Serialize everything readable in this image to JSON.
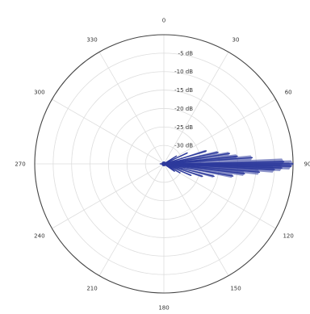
{
  "chart_data": {
    "type": "polar",
    "radial_unit": "dB",
    "radial_range": [
      -35,
      0
    ],
    "radial_step": 5,
    "angle_ticks": [
      {
        "angle": 0,
        "label": "0"
      },
      {
        "angle": 30,
        "label": "30"
      },
      {
        "angle": 60,
        "label": "60"
      },
      {
        "angle": 90,
        "label": "90"
      },
      {
        "angle": 120,
        "label": "120"
      },
      {
        "angle": 150,
        "label": "150"
      },
      {
        "angle": 180,
        "label": "180"
      },
      {
        "angle": 210,
        "label": "210"
      },
      {
        "angle": 240,
        "label": "240"
      },
      {
        "angle": 270,
        "label": "270"
      },
      {
        "angle": 300,
        "label": "300"
      },
      {
        "angle": 330,
        "label": "330"
      }
    ],
    "radial_tick_labels": [
      "-5 dB",
      "-10 dB",
      "-15 dB",
      "-20 dB",
      "-25 dB",
      "-30 dB"
    ],
    "grid": true,
    "series_color": "#2e3a9c",
    "beams": [
      {
        "angle": 90,
        "level": 0
      },
      {
        "angle": 91,
        "level": -0.5
      },
      {
        "angle": 89,
        "level": -2.5
      },
      {
        "angle": 92,
        "level": -3
      },
      {
        "angle": 93,
        "level": -5
      },
      {
        "angle": 95,
        "level": -9
      },
      {
        "angle": 97,
        "level": -13
      },
      {
        "angle": 86,
        "level": -11
      },
      {
        "angle": 84,
        "level": -15
      },
      {
        "angle": 81,
        "level": -17
      },
      {
        "angle": 78,
        "level": -20
      },
      {
        "angle": 73,
        "level": -23
      },
      {
        "angle": 100,
        "level": -16
      },
      {
        "angle": 104,
        "level": -21
      },
      {
        "angle": 108,
        "level": -24
      },
      {
        "angle": 113,
        "level": -27
      },
      {
        "angle": 65,
        "level": -28
      },
      {
        "angle": 119,
        "level": -30
      },
      {
        "angle": 58,
        "level": -31
      },
      {
        "angle": 125,
        "level": -31.5
      },
      {
        "angle": 270,
        "level": -34
      }
    ]
  }
}
